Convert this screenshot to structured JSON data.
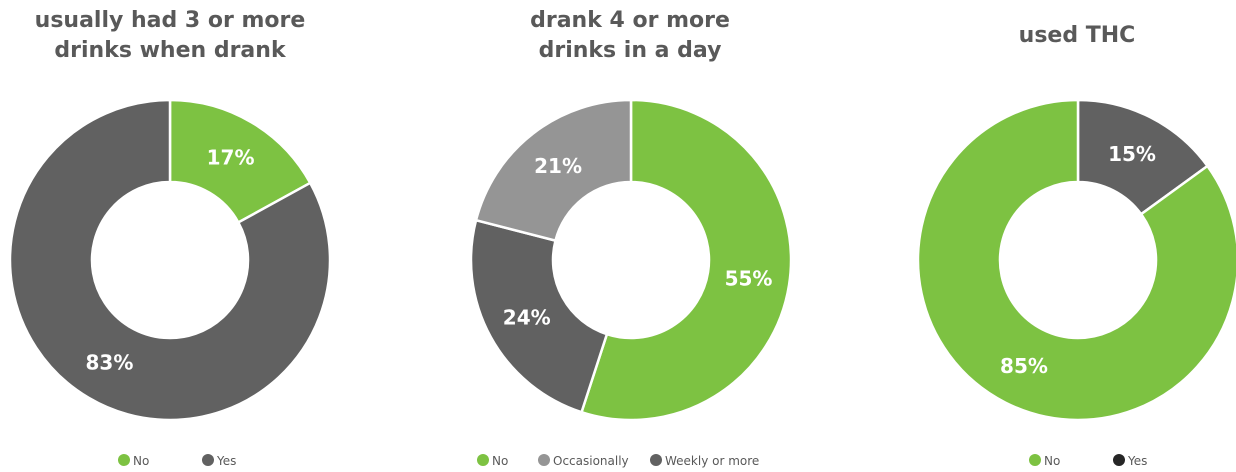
{
  "colors": {
    "green": "#7dc242",
    "dark_gray": "#616161",
    "light_gray": "#959595",
    "near_black": "#262626",
    "separator": "#ffffff"
  },
  "chart_data": [
    {
      "type": "pie",
      "title_lines": [
        "usually had 3 or more",
        "drinks when drank"
      ],
      "slices": [
        {
          "label": "No",
          "value": 17,
          "display": "17%",
          "color": "#7dc242"
        },
        {
          "label": "Yes",
          "value": 83,
          "display": "83%",
          "color": "#616161"
        }
      ],
      "legend": [
        {
          "label": "No",
          "color": "#7dc242"
        },
        {
          "label": "Yes",
          "color": "#616161"
        }
      ],
      "legend_position": "bottom"
    },
    {
      "type": "pie",
      "title_lines": [
        "drank 4 or more",
        "drinks in a day"
      ],
      "slices": [
        {
          "label": "No",
          "value": 55,
          "display": "55%",
          "color": "#7dc242"
        },
        {
          "label": "Weekly or more",
          "value": 24,
          "display": "24%",
          "color": "#616161"
        },
        {
          "label": "Occasionally",
          "value": 21,
          "display": "21%",
          "color": "#959595"
        }
      ],
      "legend": [
        {
          "label": "No",
          "color": "#7dc242"
        },
        {
          "label": "Occasionally",
          "color": "#959595"
        },
        {
          "label": "Weekly or more",
          "color": "#616161"
        }
      ],
      "legend_position": "bottom"
    },
    {
      "type": "pie",
      "title_lines": [
        "used THC"
      ],
      "slices": [
        {
          "label": "Yes",
          "value": 15,
          "display": "15%",
          "color": "#616161"
        },
        {
          "label": "No",
          "value": 85,
          "display": "85%",
          "color": "#7dc242"
        }
      ],
      "legend": [
        {
          "label": "No",
          "color": "#7dc242"
        },
        {
          "label": "Yes",
          "color": "#262626"
        }
      ],
      "legend_position": "bottom"
    }
  ]
}
